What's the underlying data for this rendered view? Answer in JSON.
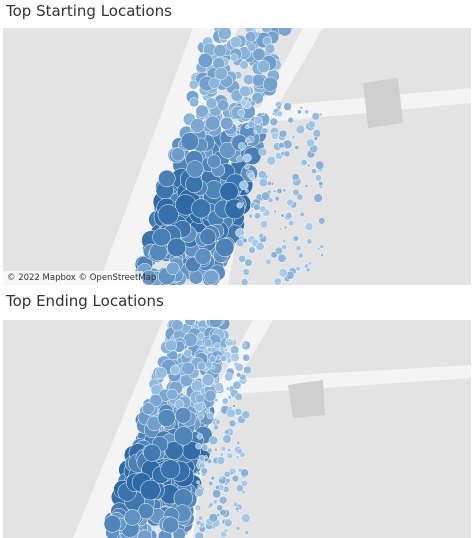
{
  "maps": [
    {
      "title": "Top Starting Locations",
      "attribution": "© 2022 Mapbox © OpenStreetMap"
    },
    {
      "title": "Top Ending Locations"
    }
  ]
}
